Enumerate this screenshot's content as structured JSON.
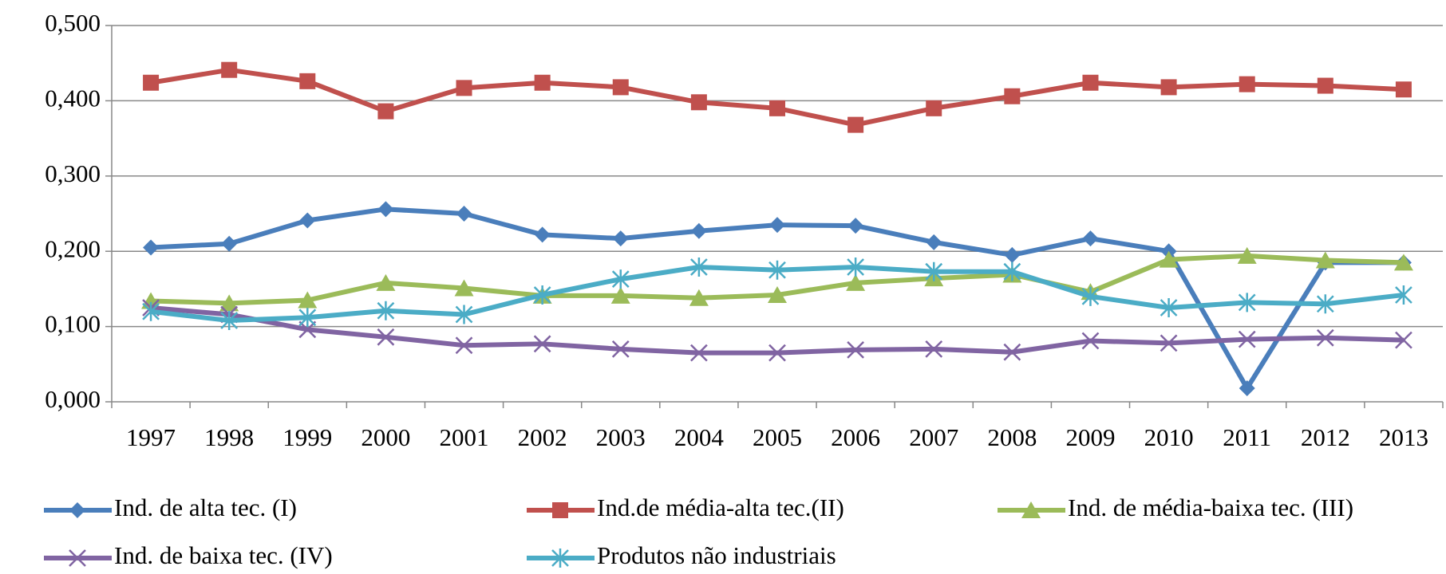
{
  "chart_data": {
    "type": "line",
    "categories": [
      "1997",
      "1998",
      "1999",
      "2000",
      "2001",
      "2002",
      "2003",
      "2004",
      "2005",
      "2006",
      "2007",
      "2008",
      "2009",
      "2010",
      "2011",
      "2012",
      "2013"
    ],
    "series": [
      {
        "name": "Ind. de alta tec. (I)",
        "color": "#4a7ebb",
        "marker": "diamond",
        "values": [
          0.205,
          0.21,
          0.241,
          0.256,
          0.25,
          0.222,
          0.217,
          0.227,
          0.235,
          0.234,
          0.212,
          0.195,
          0.217,
          0.2,
          0.018,
          0.185,
          0.185
        ]
      },
      {
        "name": "Ind.de média-alta tec.(II)",
        "color": "#c0504d",
        "marker": "square",
        "values": [
          0.424,
          0.441,
          0.426,
          0.386,
          0.417,
          0.424,
          0.418,
          0.398,
          0.39,
          0.368,
          0.39,
          0.406,
          0.424,
          0.418,
          0.422,
          0.42,
          0.415
        ]
      },
      {
        "name": "Ind. de média-baixa tec. (III)",
        "color": "#9bbb59",
        "marker": "triangle",
        "values": [
          0.134,
          0.131,
          0.135,
          0.158,
          0.151,
          0.141,
          0.141,
          0.138,
          0.142,
          0.158,
          0.164,
          0.169,
          0.146,
          0.189,
          0.194,
          0.188,
          0.185
        ]
      },
      {
        "name": "Ind. de baixa tec. (IV)",
        "color": "#8064a2",
        "marker": "x",
        "values": [
          0.125,
          0.116,
          0.096,
          0.086,
          0.075,
          0.077,
          0.07,
          0.065,
          0.065,
          0.069,
          0.07,
          0.066,
          0.081,
          0.078,
          0.083,
          0.085,
          0.082
        ]
      },
      {
        "name": "Produtos não industriais",
        "color": "#4bacc6",
        "marker": "star",
        "values": [
          0.12,
          0.108,
          0.112,
          0.121,
          0.116,
          0.142,
          0.163,
          0.179,
          0.175,
          0.179,
          0.173,
          0.173,
          0.14,
          0.125,
          0.132,
          0.13,
          0.142
        ]
      }
    ],
    "ylim": [
      0,
      0.5
    ],
    "yticks": [
      {
        "value": 0,
        "label": "0,000"
      },
      {
        "value": 0.1,
        "label": "0,100"
      },
      {
        "value": 0.2,
        "label": "0,200"
      },
      {
        "value": 0.3,
        "label": "0,300"
      },
      {
        "value": 0.4,
        "label": "0,400"
      },
      {
        "value": 0.5,
        "label": "0,500"
      }
    ],
    "grid": true,
    "legend": "bottom"
  }
}
